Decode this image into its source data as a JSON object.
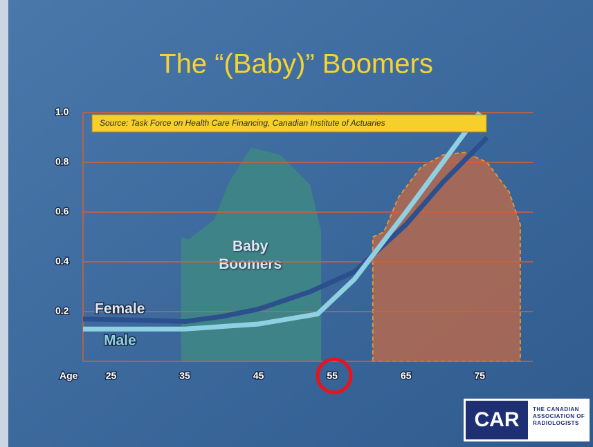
{
  "chart_data": {
    "type": "line",
    "title": "The “(Baby)” Boomers",
    "annotation": "Source: Task Force on Health Care Financing, Canadian Institute of Actuaries",
    "x_label": "Age",
    "xlim": [
      21.2,
      82.2
    ],
    "xticks": [
      25,
      35,
      45,
      55,
      65,
      75
    ],
    "ylim": [
      0,
      1
    ],
    "yticks": [
      0.2,
      0.4,
      0.6,
      0.8,
      {
        "value": 1,
        "label": "1.0"
      }
    ],
    "grid": true,
    "series": [
      {
        "name": "Baby Boomers",
        "style": "area",
        "color": "#3d8387",
        "x": [
          34.5,
          35.5,
          39,
          41,
          44,
          48,
          52,
          53.5
        ],
        "values": [
          0.5,
          0.49,
          0.57,
          0.72,
          0.86,
          0.83,
          0.71,
          0.52
        ]
      },
      {
        "style": "area",
        "color": "#b5684e",
        "x": [
          60.5,
          62,
          64,
          67,
          70,
          73,
          76,
          79,
          80.5
        ],
        "values": [
          0.5,
          0.52,
          0.66,
          0.78,
          0.83,
          0.84,
          0.8,
          0.68,
          0.55
        ]
      },
      {
        "name": "Female",
        "style": "line",
        "color": "#2c4f8e",
        "x": [
          21.2,
          30,
          35,
          40,
          45,
          52,
          58,
          65,
          70,
          76
        ],
        "values": [
          0.17,
          0.165,
          0.16,
          0.18,
          0.21,
          0.28,
          0.36,
          0.55,
          0.72,
          0.9
        ]
      },
      {
        "name": "Male",
        "style": "line",
        "color": "#8fd0e2",
        "x": [
          21.2,
          30,
          35,
          45,
          53,
          58,
          65,
          70,
          75
        ],
        "values": [
          0.13,
          0.13,
          0.13,
          0.15,
          0.19,
          0.33,
          0.6,
          0.8,
          1
        ]
      }
    ]
  },
  "logo": {
    "mark": "CAR",
    "text": "THE CANADIAN ASSOCIATION OF RADIOLOGISTS"
  }
}
